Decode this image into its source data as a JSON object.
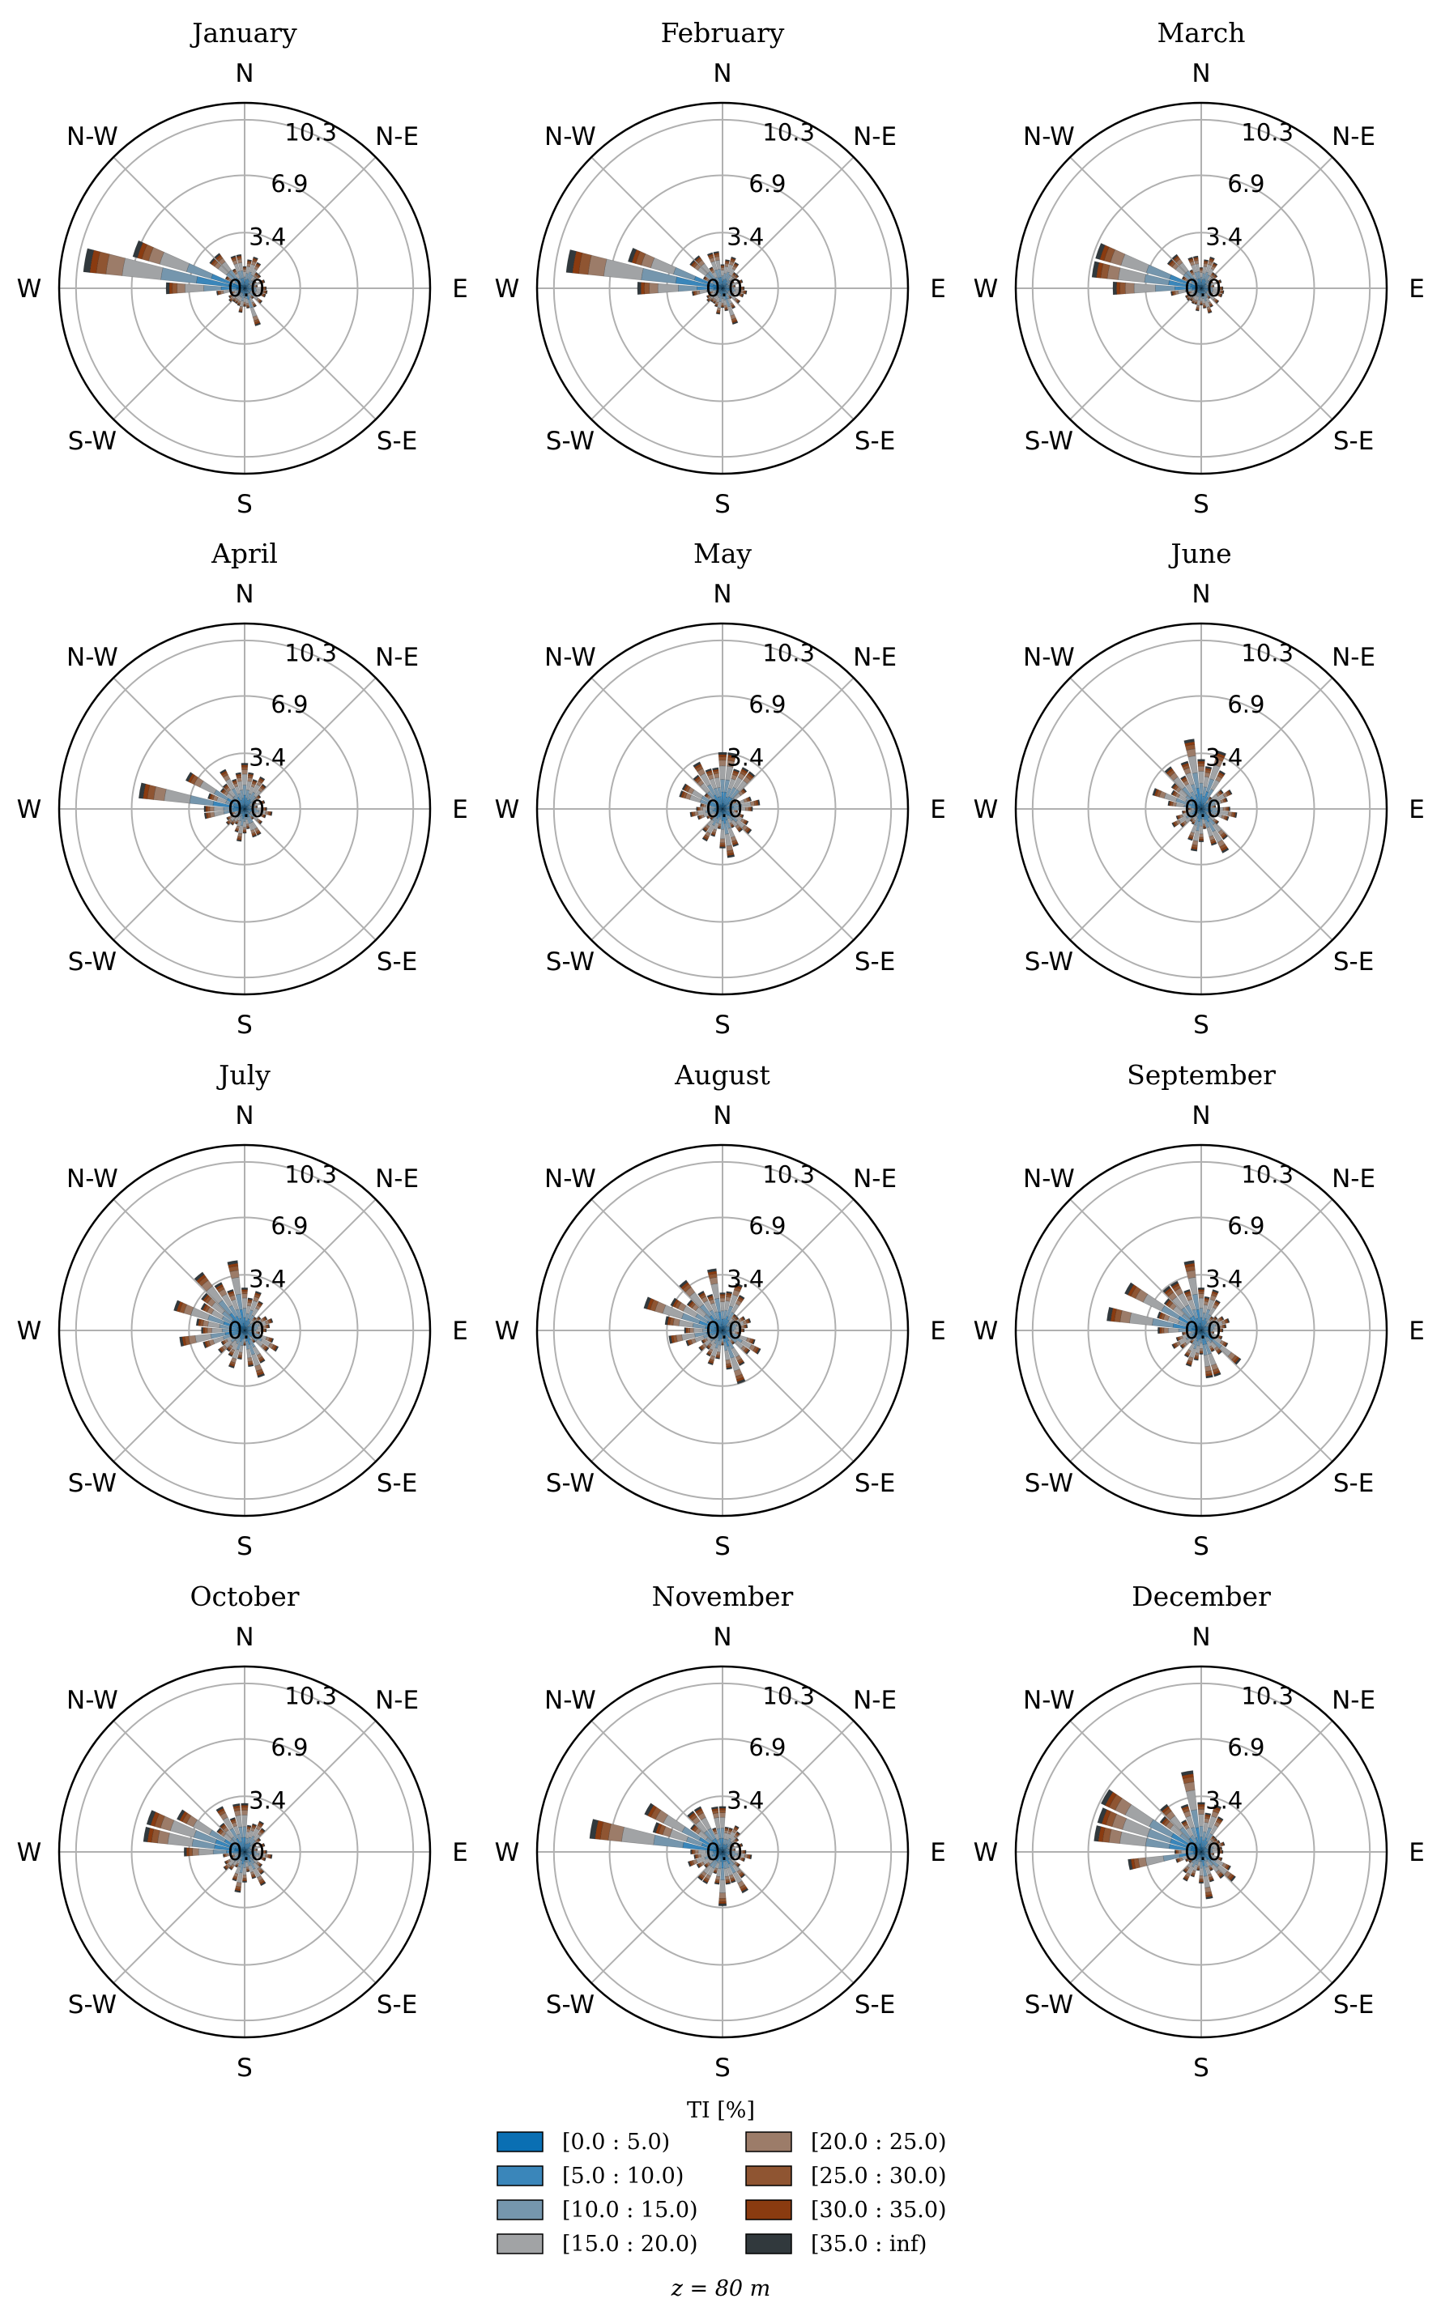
{
  "chart_data": {
    "type": "windrose",
    "direction_labels": [
      "N",
      "N-E",
      "E",
      "S-E",
      "S",
      "S-W",
      "W",
      "N-W"
    ],
    "radial_ticks": [
      "0.0",
      "3.4",
      "6.9",
      "10.3"
    ],
    "rmax": 10.3,
    "sectors": 36,
    "legend": {
      "title": "TI [%]",
      "entries": [
        {
          "label": "[0.0 : 5.0)",
          "color": "#0a6fb3"
        },
        {
          "label": "[5.0 : 10.0)",
          "color": "#3a86ba"
        },
        {
          "label": "[10.0 : 15.0)",
          "color": "#7596ad"
        },
        {
          "label": "[15.0 : 20.0)",
          "color": "#a1a3a5"
        },
        {
          "label": "[20.0 : 25.0)",
          "color": "#9c7c69"
        },
        {
          "label": "[25.0 : 30.0)",
          "color": "#8f5532"
        },
        {
          "label": "[30.0 : 35.0)",
          "color": "#8a3b10"
        },
        {
          "label": "[35.0 : inf)",
          "color": "#31393d"
        }
      ]
    },
    "caption": "z = 80 m",
    "panels": [
      {
        "title": "January",
        "lobes": [
          [
            280,
            9.9,
            14
          ],
          [
            290,
            7.1,
            10
          ],
          [
            270,
            4.8,
            14
          ],
          [
            315,
            3.0,
            20
          ],
          [
            345,
            2.2,
            30
          ],
          [
            20,
            2.0,
            40
          ],
          [
            100,
            1.4,
            30
          ],
          [
            160,
            2.4,
            16
          ],
          [
            190,
            1.5,
            26
          ],
          [
            230,
            1.2,
            40
          ]
        ]
      },
      {
        "title": "February",
        "lobes": [
          [
            280,
            9.6,
            14
          ],
          [
            290,
            6.0,
            10
          ],
          [
            270,
            5.2,
            14
          ],
          [
            315,
            2.8,
            20
          ],
          [
            345,
            2.4,
            30
          ],
          [
            20,
            2.0,
            40
          ],
          [
            100,
            1.5,
            30
          ],
          [
            160,
            2.3,
            20
          ],
          [
            190,
            1.6,
            26
          ],
          [
            230,
            1.2,
            40
          ]
        ]
      },
      {
        "title": "March",
        "lobes": [
          [
            285,
            9.5,
            12
          ],
          [
            275,
            8.9,
            10
          ],
          [
            270,
            5.2,
            14
          ],
          [
            315,
            2.9,
            20
          ],
          [
            345,
            2.1,
            30
          ],
          [
            20,
            2.0,
            40
          ],
          [
            100,
            1.4,
            30
          ],
          [
            160,
            1.6,
            24
          ],
          [
            190,
            1.4,
            26
          ],
          [
            230,
            1.1,
            40
          ]
        ]
      },
      {
        "title": "April",
        "lobes": [
          [
            280,
            6.5,
            14
          ],
          [
            300,
            4.0,
            16
          ],
          [
            265,
            3.2,
            14
          ],
          [
            330,
            2.7,
            24
          ],
          [
            360,
            2.8,
            30
          ],
          [
            30,
            2.2,
            36
          ],
          [
            100,
            1.7,
            30
          ],
          [
            155,
            2.0,
            22
          ],
          [
            190,
            2.0,
            26
          ],
          [
            230,
            1.4,
            40
          ]
        ]
      },
      {
        "title": "May",
        "lobes": [
          [
            5,
            3.6,
            36
          ],
          [
            35,
            3.0,
            30
          ],
          [
            330,
            3.2,
            30
          ],
          [
            295,
            3.0,
            24
          ],
          [
            80,
            2.3,
            30
          ],
          [
            130,
            2.2,
            30
          ],
          [
            170,
            3.0,
            30
          ],
          [
            210,
            2.2,
            30
          ],
          [
            260,
            2.0,
            30
          ]
        ]
      },
      {
        "title": "June",
        "lobes": [
          [
            350,
            4.3,
            24
          ],
          [
            20,
            3.7,
            24
          ],
          [
            320,
            3.2,
            24
          ],
          [
            290,
            3.1,
            22
          ],
          [
            60,
            2.1,
            30
          ],
          [
            100,
            2.2,
            30
          ],
          [
            150,
            3.0,
            28
          ],
          [
            190,
            2.6,
            28
          ],
          [
            240,
            2.0,
            30
          ]
        ]
      },
      {
        "title": "July",
        "lobes": [
          [
            350,
            4.3,
            20
          ],
          [
            320,
            4.4,
            26
          ],
          [
            290,
            4.5,
            22
          ],
          [
            260,
            4.0,
            22
          ],
          [
            20,
            2.5,
            30
          ],
          [
            70,
            1.8,
            36
          ],
          [
            120,
            2.3,
            30
          ],
          [
            160,
            3.0,
            26
          ],
          [
            200,
            2.4,
            26
          ],
          [
            230,
            2.0,
            30
          ]
        ]
      },
      {
        "title": "August",
        "lobes": [
          [
            290,
            5.0,
            24
          ],
          [
            320,
            3.8,
            24
          ],
          [
            350,
            3.8,
            20
          ],
          [
            260,
            3.3,
            24
          ],
          [
            20,
            3.0,
            30
          ],
          [
            70,
            1.8,
            36
          ],
          [
            120,
            2.6,
            30
          ],
          [
            160,
            3.4,
            24
          ],
          [
            200,
            2.2,
            30
          ],
          [
            230,
            1.8,
            30
          ]
        ]
      },
      {
        "title": "September",
        "lobes": [
          [
            280,
            5.8,
            16
          ],
          [
            300,
            5.2,
            18
          ],
          [
            325,
            3.8,
            20
          ],
          [
            350,
            4.3,
            20
          ],
          [
            20,
            2.6,
            30
          ],
          [
            70,
            1.8,
            36
          ],
          [
            130,
            3.0,
            20
          ],
          [
            165,
            3.2,
            24
          ],
          [
            200,
            2.3,
            30
          ],
          [
            240,
            2.0,
            30
          ]
        ]
      },
      {
        "title": "October",
        "lobes": [
          [
            285,
            8.8,
            12
          ],
          [
            300,
            4.6,
            16
          ],
          [
            270,
            3.7,
            14
          ],
          [
            330,
            3.1,
            24
          ],
          [
            355,
            3.2,
            26
          ],
          [
            30,
            2.1,
            36
          ],
          [
            100,
            1.7,
            30
          ],
          [
            150,
            2.3,
            26
          ],
          [
            190,
            2.5,
            26
          ],
          [
            230,
            1.6,
            36
          ]
        ]
      },
      {
        "title": "November",
        "lobes": [
          [
            282,
            8.5,
            14
          ],
          [
            300,
            5.3,
            16
          ],
          [
            325,
            3.5,
            20
          ],
          [
            355,
            3.0,
            26
          ],
          [
            30,
            1.8,
            36
          ],
          [
            100,
            1.8,
            30
          ],
          [
            150,
            2.8,
            24
          ],
          [
            180,
            3.3,
            20
          ],
          [
            215,
            2.3,
            30
          ],
          [
            250,
            2.2,
            30
          ]
        ]
      },
      {
        "title": "December",
        "lobes": [
          [
            285,
            8.5,
            14
          ],
          [
            300,
            6.8,
            16
          ],
          [
            320,
            3.6,
            20
          ],
          [
            350,
            5.0,
            20
          ],
          [
            20,
            3.0,
            30
          ],
          [
            70,
            1.5,
            36
          ],
          [
            130,
            2.6,
            28
          ],
          [
            170,
            2.9,
            22
          ],
          [
            210,
            2.0,
            30
          ],
          [
            260,
            4.5,
            14
          ]
        ]
      }
    ]
  }
}
